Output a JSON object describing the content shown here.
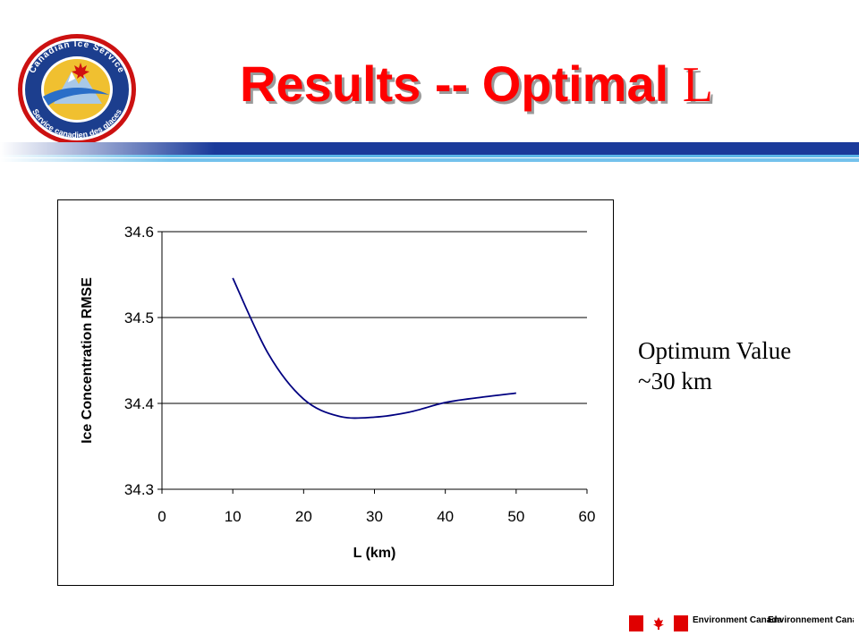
{
  "slide": {
    "title_prefix": "Results -- Optimal ",
    "title_symbol": "L",
    "title_color": "#ff0000",
    "logo": {
      "ring_text_top": "Canadian Ice Service",
      "ring_text_bottom": "Service canadien des glaces",
      "icon": "canadian-ice-service-logo"
    },
    "note": {
      "line1": "Optimum Value",
      "line2": "~30 km"
    },
    "footer": {
      "flag_icon": "canada-flag-icon",
      "wordmark_en": "Environment Canada",
      "wordmark_fr": "Environnement Canada"
    }
  },
  "chart_data": {
    "type": "line",
    "title": "",
    "xlabel": "L (km)",
    "ylabel": "Ice Concentration RMSE",
    "xlim": [
      0,
      60
    ],
    "ylim": [
      34.3,
      34.6
    ],
    "xticks": [
      0,
      10,
      20,
      30,
      40,
      50,
      60
    ],
    "yticks": [
      34.3,
      34.4,
      34.5,
      34.6
    ],
    "grid": "horizontal",
    "legend": "none",
    "line_color": "#000080",
    "series": [
      {
        "x": [
          10,
          15,
          20,
          25,
          30,
          35,
          40,
          45,
          50
        ],
        "y": [
          34.546,
          34.458,
          34.405,
          34.385,
          34.384,
          34.39,
          34.401,
          34.407,
          34.412
        ]
      }
    ]
  }
}
